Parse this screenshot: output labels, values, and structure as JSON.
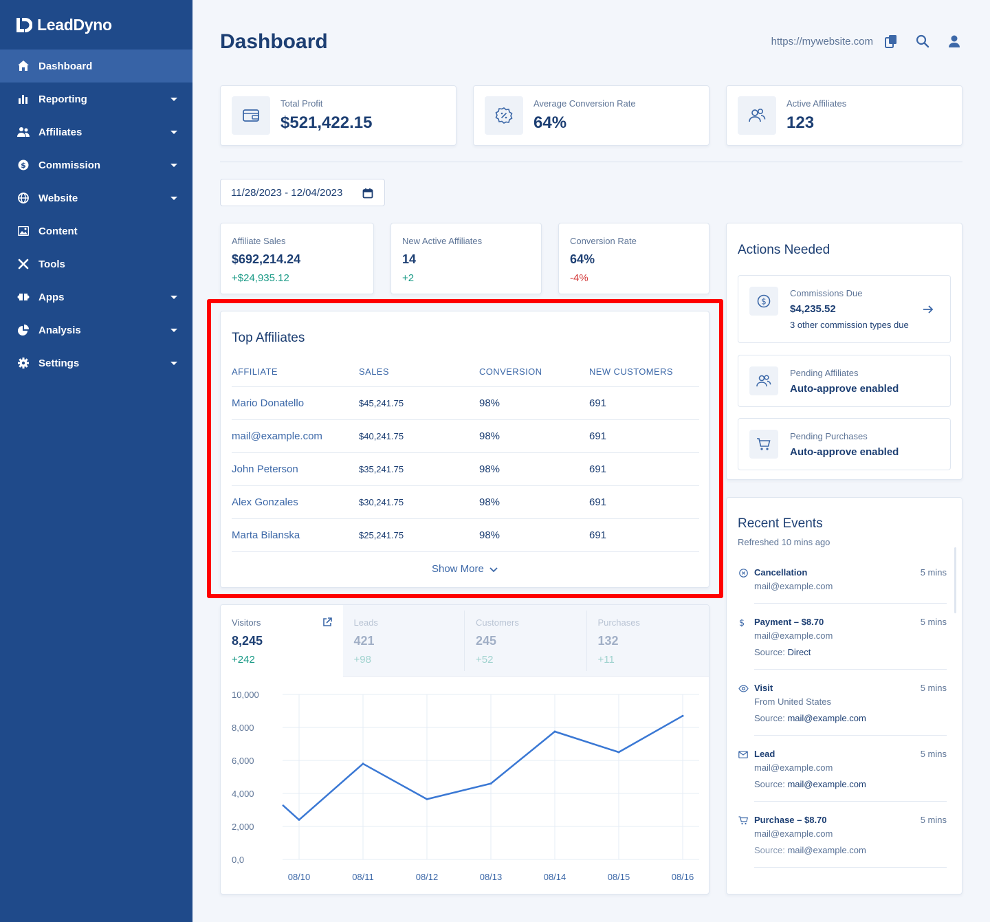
{
  "app": {
    "name": "LeadDyno"
  },
  "sidebar": {
    "items": [
      {
        "label": "Dashboard",
        "icon": "home-icon",
        "active": true,
        "has_caret": false
      },
      {
        "label": "Reporting",
        "icon": "bar-chart-icon",
        "active": false,
        "has_caret": true
      },
      {
        "label": "Affiliates",
        "icon": "users-icon",
        "active": false,
        "has_caret": true
      },
      {
        "label": "Commission",
        "icon": "dollar-circle-icon",
        "active": false,
        "has_caret": true
      },
      {
        "label": "Website",
        "icon": "globe-icon",
        "active": false,
        "has_caret": true
      },
      {
        "label": "Content",
        "icon": "image-icon",
        "active": false,
        "has_caret": false
      },
      {
        "label": "Tools",
        "icon": "tools-icon",
        "active": false,
        "has_caret": false
      },
      {
        "label": "Apps",
        "icon": "puzzle-icon",
        "active": false,
        "has_caret": true
      },
      {
        "label": "Analysis",
        "icon": "pie-chart-icon",
        "active": false,
        "has_caret": true
      },
      {
        "label": "Settings",
        "icon": "gear-icon",
        "active": false,
        "has_caret": true
      }
    ]
  },
  "header": {
    "title": "Dashboard",
    "site_url": "https://mywebsite.com"
  },
  "stats": [
    {
      "label": "Total Profit",
      "value": "$521,422.15",
      "icon": "wallet-icon"
    },
    {
      "label": "Average Conversion Rate",
      "value": "64%",
      "icon": "percent-badge-icon"
    },
    {
      "label": "Active Affiliates",
      "value": "123",
      "icon": "users-icon"
    }
  ],
  "date_range": "11/28/2023 - 12/04/2023",
  "metrics": [
    {
      "label": "Affiliate Sales",
      "value": "$692,214.24",
      "delta": "+$24,935.12",
      "trend": "up"
    },
    {
      "label": "New Active Affiliates",
      "value": "14",
      "delta": "+2",
      "trend": "up"
    },
    {
      "label": "Conversion Rate",
      "value": "64%",
      "delta": "-4%",
      "trend": "down"
    }
  ],
  "top_affiliates": {
    "title": "Top Affiliates",
    "columns": [
      "AFFILIATE",
      "SALES",
      "CONVERSION",
      "NEW CUSTOMERS"
    ],
    "rows": [
      [
        "Mario Donatello",
        "$45,241.75",
        "98%",
        "691"
      ],
      [
        "mail@example.com",
        "$40,241.75",
        "98%",
        "691"
      ],
      [
        "John Peterson",
        "$35,241.75",
        "98%",
        "691"
      ],
      [
        "Alex Gonzales",
        "$30,241.75",
        "98%",
        "691"
      ],
      [
        "Marta Bilanska",
        "$25,241.75",
        "98%",
        "691"
      ]
    ],
    "show_more": "Show More"
  },
  "traffic_tabs": [
    {
      "label": "Visitors",
      "value": "8,245",
      "delta": "+242",
      "active": true
    },
    {
      "label": "Leads",
      "value": "421",
      "delta": "+98",
      "active": false
    },
    {
      "label": "Customers",
      "value": "245",
      "delta": "+52",
      "active": false
    },
    {
      "label": "Purchases",
      "value": "132",
      "delta": "+11",
      "active": false
    }
  ],
  "chart_data": {
    "type": "line",
    "title": "",
    "xlabel": "",
    "ylabel": "",
    "x": [
      "08/10",
      "08/11",
      "08/12",
      "08/13",
      "08/14",
      "08/15",
      "08/16"
    ],
    "series": [
      {
        "values": [
          2400,
          5800,
          3650,
          4600,
          7750,
          6500,
          8700
        ]
      }
    ],
    "y_ticks": [
      "10,000",
      "8,000",
      "6,000",
      "4,000",
      "2,000",
      "0,0"
    ],
    "ylim": [
      0,
      10000
    ],
    "grid": true,
    "line_color": "#3a78d4"
  },
  "actions": {
    "title": "Actions Needed",
    "items": [
      {
        "label": "Commissions Due",
        "value": "$4,235.52",
        "sub": "3 other commission types due",
        "icon": "dollar-circle-icon"
      },
      {
        "label": "Pending Affiliates",
        "value": "Auto-approve enabled",
        "icon": "users-icon"
      },
      {
        "label": "Pending Purchases",
        "value": "Auto-approve enabled",
        "icon": "cart-icon"
      }
    ]
  },
  "events": {
    "title": "Recent Events",
    "subtitle": "Refreshed 10 mins ago",
    "items": [
      {
        "title": "Cancellation",
        "time": "5 mins",
        "line1": "mail@example.com",
        "source_label": "",
        "source_value": "",
        "icon": "x-circle-icon"
      },
      {
        "title": "Payment – $8.70",
        "time": "5 mins",
        "line1": "mail@example.com",
        "source_label": "Source:",
        "source_value": "Direct",
        "icon": "dollar-icon"
      },
      {
        "title": "Visit",
        "time": "5 mins",
        "line1": "From United States",
        "source_label": "Source:",
        "source_value": "mail@example.com",
        "icon": "eye-icon"
      },
      {
        "title": "Lead",
        "time": "5 mins",
        "line1": "mail@example.com",
        "source_label": "Source:",
        "source_value": "mail@example.com",
        "icon": "mail-icon"
      },
      {
        "title": "Purchase – $8.70",
        "time": "5 mins",
        "line1": "mail@example.com",
        "source_label": "Source:",
        "source_value": "mail@example.com",
        "icon": "cart-icon"
      }
    ]
  }
}
